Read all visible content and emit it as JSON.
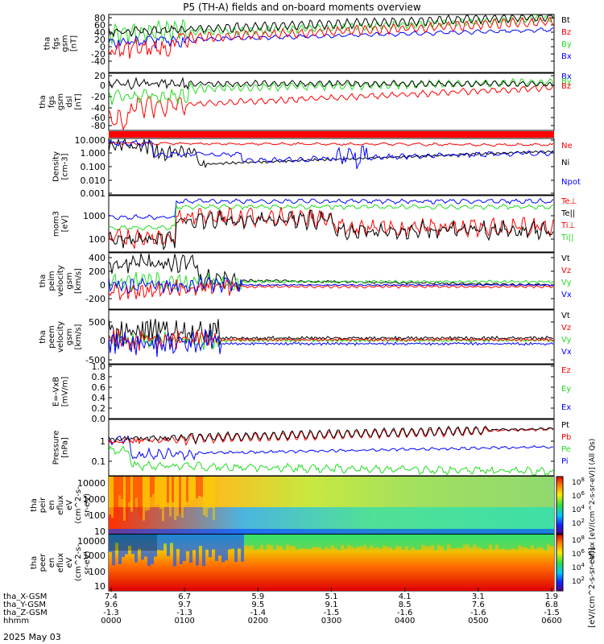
{
  "title": "P5 (TH-A) fields and on-board moments overview",
  "date": "2025 May 03",
  "colors": {
    "black": "#000000",
    "red": "#ff0000",
    "green": "#22dd22",
    "blue": "#0000ff",
    "magenta": "#dd00dd"
  },
  "chart_data": [
    {
      "type": "line",
      "ylabel": [
        "tha",
        "fgs",
        "gsm",
        "[nT]"
      ],
      "ylim": [
        -40,
        80
      ],
      "yticks": [
        "80",
        "60",
        "40",
        "20",
        "0",
        "-20",
        "-40"
      ],
      "legend": [
        {
          "name": "Bt",
          "color": "black"
        },
        {
          "name": "Bz",
          "color": "red"
        },
        {
          "name": "By",
          "color": "green"
        },
        {
          "name": "Bx",
          "color": "blue"
        }
      ]
    },
    {
      "type": "line",
      "ylabel": [
        "tha",
        "fgs",
        "gsm",
        "dsl",
        "[nT]"
      ],
      "ylim": [
        -90,
        20
      ],
      "yticks": [
        "20",
        "0",
        "-20",
        "-40",
        "-60",
        "-80"
      ],
      "legend": [
        {
          "name": "Bx",
          "color": "blue"
        },
        {
          "name": "By",
          "color": "green"
        },
        {
          "name": "Bz",
          "color": "red"
        }
      ]
    },
    {
      "type": "line",
      "ylabel": [
        "Density",
        "[cm-3]"
      ],
      "ylim": [
        0.001,
        10.0
      ],
      "scale": "log",
      "yticks": [
        "10.000",
        "1.000",
        "0.100",
        "0.010",
        "0.001"
      ],
      "legend": [
        {
          "name": "Ne",
          "color": "red"
        },
        {
          "name": "Ni",
          "color": "black"
        },
        {
          "name": "Npot",
          "color": "blue"
        }
      ]
    },
    {
      "type": "line",
      "ylabel": [
        "mom3",
        "[eV]"
      ],
      "scale": "log",
      "yticks": [
        "1000",
        "100"
      ],
      "legend": [
        {
          "name": "Te⊥",
          "color": "red"
        },
        {
          "name": "Te||",
          "color": "black"
        },
        {
          "name": "Ti⊥",
          "color": "red"
        },
        {
          "name": "Ti||",
          "color": "green"
        }
      ]
    },
    {
      "type": "line",
      "ylabel": [
        "tha",
        "peim",
        "velocity",
        "gsm",
        "[km/s]"
      ],
      "ylim": [
        -250,
        450
      ],
      "yticks": [
        "400",
        "200",
        "0",
        "-200"
      ],
      "legend": [
        {
          "name": "Vt",
          "color": "black"
        },
        {
          "name": "Vz",
          "color": "red"
        },
        {
          "name": "Vy",
          "color": "green"
        },
        {
          "name": "Vx",
          "color": "blue"
        }
      ]
    },
    {
      "type": "line",
      "ylabel": [
        "tha",
        "peem",
        "velocity",
        "gsm",
        "[km/s]"
      ],
      "ylim": [
        -600,
        1000
      ],
      "yticks": [
        "500",
        "0",
        "-500"
      ],
      "legend": [
        {
          "name": "Vt",
          "color": "black"
        },
        {
          "name": "Vz",
          "color": "red"
        },
        {
          "name": "Vy",
          "color": "green"
        },
        {
          "name": "Vx",
          "color": "blue"
        }
      ]
    },
    {
      "type": "line",
      "ylabel": [
        "E=-VxB",
        "[mV/m]"
      ],
      "ylim": [
        0.0,
        1.0
      ],
      "yticks": [
        "1.0",
        "0.8",
        "0.6",
        "0.4",
        "0.2",
        "0.0"
      ],
      "legend": [
        {
          "name": "Ez",
          "color": "red"
        },
        {
          "name": "Ey",
          "color": "green"
        },
        {
          "name": "Ex",
          "color": "blue"
        }
      ]
    },
    {
      "type": "line",
      "ylabel": [
        "Pressure",
        "[nPa]"
      ],
      "scale": "log",
      "yticks": [
        "1",
        "0.1"
      ],
      "legend": [
        {
          "name": "Pt",
          "color": "black"
        },
        {
          "name": "Pb",
          "color": "red"
        },
        {
          "name": "Pe",
          "color": "green"
        },
        {
          "name": "Pi",
          "color": "blue"
        }
      ]
    },
    {
      "type": "heatmap",
      "ylabel": [
        "tha",
        "peir",
        "en",
        "eflux",
        "eV",
        "(cm^2-s-",
        "sr-eV)"
      ],
      "scale": "log",
      "yticks": [
        "10000",
        "1000",
        "100",
        "10"
      ]
    },
    {
      "type": "heatmap",
      "ylabel": [
        "tha",
        "peer",
        "en",
        "eflux",
        "eV",
        "(cm^2-s-",
        "sr-eV)"
      ],
      "scale": "log",
      "yticks": [
        "10000",
        "1000",
        "100",
        "10"
      ]
    }
  ],
  "colorbars": [
    {
      "ticks": [
        {
          "base": "10",
          "exp": "8"
        },
        {
          "base": "10",
          "exp": "6"
        },
        {
          "base": "10",
          "exp": "4"
        },
        {
          "base": "10",
          "exp": "2"
        }
      ]
    },
    {
      "ticks": [
        {
          "base": "10",
          "exp": "8"
        },
        {
          "base": "10",
          "exp": "6"
        },
        {
          "base": "10",
          "exp": "4"
        },
        {
          "base": "10",
          "exp": "2"
        }
      ]
    }
  ],
  "colorbar_label": "[eV/(cm^2-s-sr-eV)]",
  "colorbar_label2": "eflux [eV/(cm^2-s-sr-eV)] (All Qs)",
  "x_axis": {
    "row_labels": [
      "tha_X-GSM",
      "tha_Y-GSM",
      "tha_Z-GSM",
      "hhmm"
    ],
    "columns": [
      [
        "7.4",
        "9.6",
        "-1.3",
        "0000"
      ],
      [
        "6.7",
        "9.7",
        "-1.3",
        "0100"
      ],
      [
        "5.9",
        "9.5",
        "-1.4",
        "0200"
      ],
      [
        "5.1",
        "9.1",
        "-1.5",
        "0300"
      ],
      [
        "4.1",
        "8.5",
        "-1.6",
        "0400"
      ],
      [
        "3.1",
        "7.6",
        "-1.6",
        "0500"
      ],
      [
        "1.9",
        "6.8",
        "-1.5",
        "0600"
      ]
    ]
  }
}
